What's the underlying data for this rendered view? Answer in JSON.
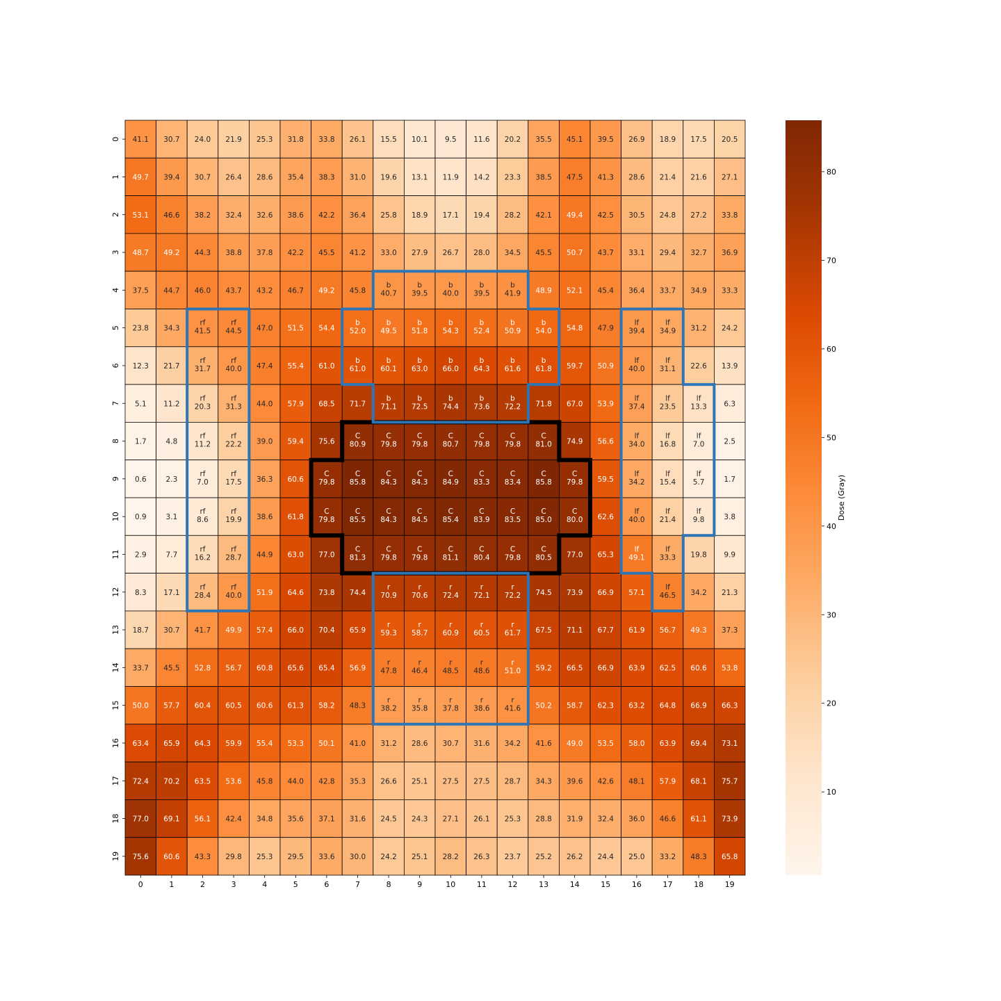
{
  "chart_data": {
    "type": "heatmap",
    "title": "",
    "xlabel": "",
    "ylabel": "",
    "x_ticks": [
      "0",
      "1",
      "2",
      "3",
      "4",
      "5",
      "6",
      "7",
      "8",
      "9",
      "10",
      "11",
      "12",
      "13",
      "14",
      "15",
      "16",
      "17",
      "18",
      "19"
    ],
    "y_ticks": [
      "0",
      "1",
      "2",
      "3",
      "4",
      "5",
      "6",
      "7",
      "8",
      "9",
      "10",
      "11",
      "12",
      "13",
      "14",
      "15",
      "16",
      "17",
      "18",
      "19"
    ],
    "colorbar": {
      "label": "Dose (Gray)",
      "colormap": "Oranges",
      "range": [
        0.6,
        85.8
      ],
      "ticks": [
        10,
        20,
        30,
        40,
        50,
        60,
        70,
        80
      ]
    },
    "values": [
      [
        41.1,
        30.7,
        24.0,
        21.9,
        25.3,
        31.8,
        33.8,
        26.1,
        15.5,
        10.1,
        9.5,
        11.6,
        20.2,
        35.5,
        45.1,
        39.5,
        26.9,
        18.9,
        17.5,
        20.5
      ],
      [
        49.7,
        39.4,
        30.7,
        26.4,
        28.6,
        35.4,
        38.3,
        31.0,
        19.6,
        13.1,
        11.9,
        14.2,
        23.3,
        38.5,
        47.5,
        41.3,
        28.6,
        21.4,
        21.6,
        27.1
      ],
      [
        53.1,
        46.6,
        38.2,
        32.4,
        32.6,
        38.6,
        42.2,
        36.4,
        25.8,
        18.9,
        17.1,
        19.4,
        28.2,
        42.1,
        49.4,
        42.5,
        30.5,
        24.8,
        27.2,
        33.8
      ],
      [
        48.7,
        49.2,
        44.3,
        38.8,
        37.8,
        42.2,
        45.5,
        41.2,
        33.0,
        27.9,
        26.7,
        28.0,
        34.5,
        45.5,
        50.7,
        43.7,
        33.1,
        29.4,
        32.7,
        36.9
      ],
      [
        37.5,
        44.7,
        46.0,
        43.7,
        43.2,
        46.7,
        49.2,
        45.8,
        40.7,
        39.5,
        40.0,
        39.5,
        41.9,
        48.9,
        52.1,
        45.4,
        36.4,
        33.7,
        34.9,
        33.3
      ],
      [
        23.8,
        34.3,
        41.5,
        44.5,
        47.0,
        51.5,
        54.4,
        52.0,
        49.5,
        51.8,
        54.3,
        52.4,
        50.9,
        54.0,
        54.8,
        47.9,
        39.4,
        34.9,
        31.2,
        24.2
      ],
      [
        12.3,
        21.7,
        31.7,
        40.0,
        47.4,
        55.4,
        61.0,
        61.0,
        60.1,
        63.0,
        66.0,
        64.3,
        61.6,
        61.8,
        59.7,
        50.9,
        40.0,
        31.1,
        22.6,
        13.9
      ],
      [
        5.1,
        11.2,
        20.3,
        31.3,
        44.0,
        57.9,
        68.5,
        71.7,
        71.1,
        72.5,
        74.4,
        73.6,
        72.2,
        71.8,
        67.0,
        53.9,
        37.4,
        23.5,
        13.3,
        6.3
      ],
      [
        1.7,
        4.8,
        11.2,
        22.2,
        39.0,
        59.4,
        75.6,
        80.9,
        79.8,
        79.8,
        80.7,
        79.8,
        79.8,
        81.0,
        74.9,
        56.6,
        34.0,
        16.8,
        7.0,
        2.5
      ],
      [
        0.6,
        2.3,
        7.0,
        17.5,
        36.3,
        60.6,
        79.8,
        85.8,
        84.3,
        84.3,
        84.9,
        83.3,
        83.4,
        85.8,
        79.8,
        59.5,
        34.2,
        15.4,
        5.7,
        1.7
      ],
      [
        0.9,
        3.1,
        8.6,
        19.9,
        38.6,
        61.8,
        79.8,
        85.5,
        84.3,
        84.5,
        85.4,
        83.9,
        83.5,
        85.0,
        80.0,
        62.6,
        40.0,
        21.4,
        9.8,
        3.8
      ],
      [
        2.9,
        7.7,
        16.2,
        28.7,
        44.9,
        63.0,
        77.0,
        81.3,
        79.8,
        79.8,
        81.1,
        80.4,
        79.8,
        80.5,
        77.0,
        65.3,
        49.1,
        33.3,
        19.8,
        9.9
      ],
      [
        8.3,
        17.1,
        28.4,
        40.0,
        51.9,
        64.6,
        73.8,
        74.4,
        70.9,
        70.6,
        72.4,
        72.1,
        72.2,
        74.5,
        73.9,
        66.9,
        57.1,
        46.5,
        34.2,
        21.3
      ],
      [
        18.7,
        30.7,
        41.7,
        49.9,
        57.4,
        66.0,
        70.4,
        65.9,
        59.3,
        58.7,
        60.9,
        60.5,
        61.7,
        67.5,
        71.1,
        67.7,
        61.9,
        56.7,
        49.3,
        37.3
      ],
      [
        33.7,
        45.5,
        52.8,
        56.7,
        60.8,
        65.6,
        65.4,
        56.9,
        47.8,
        46.4,
        48.5,
        48.6,
        51.0,
        59.2,
        66.5,
        66.9,
        63.9,
        62.5,
        60.6,
        53.8
      ],
      [
        50.0,
        57.7,
        60.4,
        60.5,
        60.6,
        61.3,
        58.2,
        48.3,
        38.2,
        35.8,
        37.8,
        38.6,
        41.6,
        50.2,
        58.7,
        62.3,
        63.2,
        64.8,
        66.9,
        66.3
      ],
      [
        63.4,
        65.9,
        64.3,
        59.9,
        55.4,
        53.3,
        50.1,
        41.0,
        31.2,
        28.6,
        30.7,
        31.6,
        34.2,
        41.6,
        49.0,
        53.5,
        58.0,
        63.9,
        69.4,
        73.1
      ],
      [
        72.4,
        70.2,
        63.5,
        53.6,
        45.8,
        44.0,
        42.8,
        35.3,
        26.6,
        25.1,
        27.5,
        27.5,
        28.7,
        34.3,
        39.6,
        42.6,
        48.1,
        57.9,
        68.1,
        75.7
      ],
      [
        77.0,
        69.1,
        56.1,
        42.4,
        34.8,
        35.6,
        37.1,
        31.6,
        24.5,
        24.3,
        27.1,
        26.1,
        25.3,
        28.8,
        31.9,
        32.4,
        36.0,
        46.6,
        61.1,
        73.9
      ],
      [
        75.6,
        60.6,
        43.3,
        29.8,
        25.3,
        29.5,
        33.6,
        30.0,
        24.2,
        25.1,
        28.2,
        26.3,
        23.7,
        25.2,
        26.2,
        24.4,
        25.0,
        33.2,
        48.3,
        65.8
      ]
    ],
    "regions": [
      {
        "label": "C",
        "outline_color": "#000000",
        "cells": [
          [
            8,
            7
          ],
          [
            8,
            8
          ],
          [
            8,
            9
          ],
          [
            8,
            10
          ],
          [
            8,
            11
          ],
          [
            8,
            12
          ],
          [
            8,
            13
          ],
          [
            9,
            6
          ],
          [
            9,
            7
          ],
          [
            9,
            8
          ],
          [
            9,
            9
          ],
          [
            9,
            10
          ],
          [
            9,
            11
          ],
          [
            9,
            12
          ],
          [
            9,
            13
          ],
          [
            9,
            14
          ],
          [
            10,
            6
          ],
          [
            10,
            7
          ],
          [
            10,
            8
          ],
          [
            10,
            9
          ],
          [
            10,
            10
          ],
          [
            10,
            11
          ],
          [
            10,
            12
          ],
          [
            10,
            13
          ],
          [
            10,
            14
          ],
          [
            11,
            7
          ],
          [
            11,
            8
          ],
          [
            11,
            9
          ],
          [
            11,
            10
          ],
          [
            11,
            11
          ],
          [
            11,
            12
          ],
          [
            11,
            13
          ]
        ]
      },
      {
        "label": "b",
        "outline_color": "#2e75b6",
        "cells": [
          [
            4,
            8
          ],
          [
            4,
            9
          ],
          [
            4,
            10
          ],
          [
            4,
            11
          ],
          [
            4,
            12
          ],
          [
            5,
            7
          ],
          [
            5,
            8
          ],
          [
            5,
            9
          ],
          [
            5,
            10
          ],
          [
            5,
            11
          ],
          [
            5,
            12
          ],
          [
            5,
            13
          ],
          [
            6,
            7
          ],
          [
            6,
            8
          ],
          [
            6,
            9
          ],
          [
            6,
            10
          ],
          [
            6,
            11
          ],
          [
            6,
            12
          ],
          [
            6,
            13
          ],
          [
            7,
            8
          ],
          [
            7,
            9
          ],
          [
            7,
            10
          ],
          [
            7,
            11
          ],
          [
            7,
            12
          ]
        ]
      },
      {
        "label": "r",
        "outline_color": "#2e75b6",
        "cells": [
          [
            12,
            8
          ],
          [
            12,
            9
          ],
          [
            12,
            10
          ],
          [
            12,
            11
          ],
          [
            12,
            12
          ],
          [
            13,
            8
          ],
          [
            13,
            9
          ],
          [
            13,
            10
          ],
          [
            13,
            11
          ],
          [
            13,
            12
          ],
          [
            14,
            8
          ],
          [
            14,
            9
          ],
          [
            14,
            10
          ],
          [
            14,
            11
          ],
          [
            14,
            12
          ],
          [
            15,
            8
          ],
          [
            15,
            9
          ],
          [
            15,
            10
          ],
          [
            15,
            11
          ],
          [
            15,
            12
          ]
        ]
      },
      {
        "label": "rf",
        "outline_color": "#2e75b6",
        "cells": [
          [
            5,
            2
          ],
          [
            5,
            3
          ],
          [
            6,
            2
          ],
          [
            6,
            3
          ],
          [
            7,
            2
          ],
          [
            7,
            3
          ],
          [
            8,
            2
          ],
          [
            8,
            3
          ],
          [
            9,
            2
          ],
          [
            9,
            3
          ],
          [
            10,
            2
          ],
          [
            10,
            3
          ],
          [
            11,
            2
          ],
          [
            11,
            3
          ],
          [
            12,
            2
          ],
          [
            12,
            3
          ]
        ]
      },
      {
        "label": "lf",
        "outline_color": "#2e75b6",
        "cells": [
          [
            5,
            16
          ],
          [
            5,
            17
          ],
          [
            6,
            16
          ],
          [
            6,
            17
          ],
          [
            7,
            16
          ],
          [
            7,
            17
          ],
          [
            7,
            18
          ],
          [
            8,
            16
          ],
          [
            8,
            17
          ],
          [
            8,
            18
          ],
          [
            9,
            16
          ],
          [
            9,
            17
          ],
          [
            9,
            18
          ],
          [
            10,
            16
          ],
          [
            10,
            17
          ],
          [
            10,
            18
          ],
          [
            11,
            16
          ],
          [
            11,
            17
          ],
          [
            12,
            17
          ]
        ]
      }
    ]
  }
}
